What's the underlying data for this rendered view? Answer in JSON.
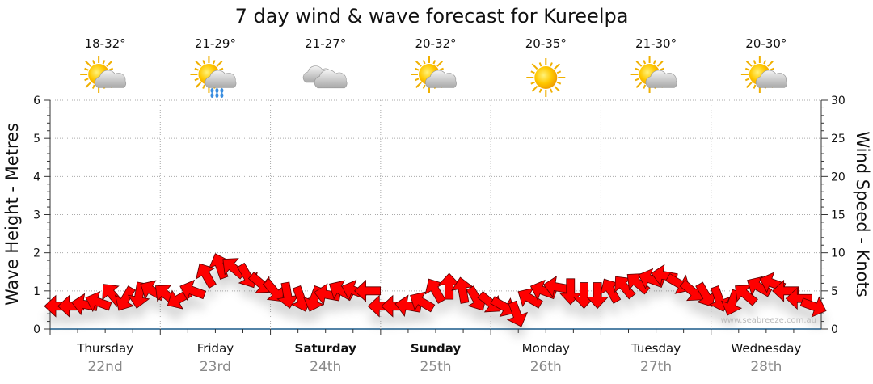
{
  "chart_data": {
    "type": "scatter",
    "title": "7 day wind & wave forecast for Kureelpa",
    "ylabel_left": "Wave Height - Metres",
    "ylabel_right": "Wind Speed - Knots",
    "ylim_left": [
      0,
      6
    ],
    "ylim_right": [
      0,
      30
    ],
    "yticks_left": [
      "0",
      "1",
      "2",
      "3",
      "4",
      "5",
      "6"
    ],
    "yticks_right": [
      "0",
      "5",
      "10",
      "15",
      "20",
      "25",
      "30"
    ],
    "grid": true,
    "watermark": "www.seabreeze.com.au",
    "days": [
      {
        "day": "Thursday",
        "date": "22nd",
        "temp": "18-32°",
        "icon": "sun-cloud",
        "bold": false
      },
      {
        "day": "Friday",
        "date": "23rd",
        "temp": "21-29°",
        "icon": "sun-cloud-rain",
        "bold": false
      },
      {
        "day": "Saturday",
        "date": "24th",
        "temp": "21-27°",
        "icon": "cloud",
        "bold": true
      },
      {
        "day": "Sunday",
        "date": "25th",
        "temp": "20-32°",
        "icon": "sun-cloud",
        "bold": true
      },
      {
        "day": "Monday",
        "date": "26th",
        "temp": "20-35°",
        "icon": "sun",
        "bold": false
      },
      {
        "day": "Tuesday",
        "date": "27th",
        "temp": "21-30°",
        "icon": "sun-cloud",
        "bold": false
      },
      {
        "day": "Wednesday",
        "date": "28th",
        "temp": "20-30°",
        "icon": "sun-cloud",
        "bold": false
      }
    ],
    "wind_series": {
      "name": "Wind (knots, 3-hourly; arrow angle in degrees, 0 = pointing right, 90 = pointing up)",
      "speed_knots": [
        3,
        3,
        3.2,
        3.5,
        4.5,
        4,
        4.5,
        5,
        4.5,
        4,
        5,
        7,
        8.2,
        8,
        7,
        6,
        5,
        4.5,
        4,
        4,
        4.5,
        5,
        5,
        5,
        3,
        3,
        3,
        3.5,
        5,
        5.5,
        5,
        4,
        3.5,
        3,
        2,
        4,
        5,
        5.5,
        5,
        4.5,
        4.5,
        5,
        5.5,
        6,
        6.5,
        7,
        6,
        5,
        4.5,
        4,
        3.5,
        4.5,
        5.5,
        6,
        5,
        4,
        3
      ],
      "direction_deg": [
        180,
        180,
        170,
        160,
        130,
        -120,
        -100,
        150,
        140,
        -150,
        160,
        120,
        110,
        140,
        -60,
        -40,
        -50,
        -80,
        -70,
        -110,
        170,
        150,
        160,
        180,
        180,
        180,
        170,
        150,
        120,
        90,
        100,
        -60,
        -40,
        -30,
        -70,
        150,
        160,
        170,
        -90,
        -90,
        -90,
        120,
        130,
        140,
        160,
        170,
        -30,
        -40,
        -60,
        -70,
        -110,
        140,
        150,
        160,
        180,
        180,
        -20
      ]
    }
  }
}
